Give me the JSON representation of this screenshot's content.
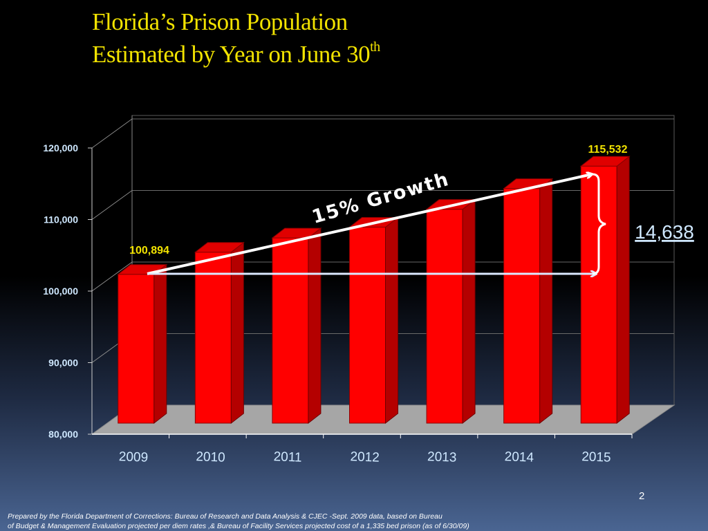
{
  "slide": {
    "title_line1": "Florida’s Prison Population",
    "title_line2": "Estimated by Year on June 30",
    "title_sup": "th",
    "page_number": "2",
    "footer_line1": "Prepared by the Florida Department of Corrections: Bureau of Research and Data Analysis & CJEC -Sept. 2009 data, based on  Bureau",
    "footer_line2": "of Budget & Management Evaluation projected per diem rates ,& Bureau of Facility Services projected cost of a 1,335 bed prison (as of 6/30/09)"
  },
  "chart_data": {
    "type": "bar",
    "categories": [
      "2009",
      "2010",
      "2011",
      "2012",
      "2013",
      "2014",
      "2015"
    ],
    "values": [
      100894,
      103500,
      105500,
      107000,
      109500,
      112400,
      115532
    ],
    "ylim": [
      80000,
      120000
    ],
    "yticks": [
      80000,
      90000,
      100000,
      110000,
      120000
    ],
    "ytick_labels": [
      "80,000",
      "90,000",
      "100,000",
      "110,000",
      "120,000"
    ],
    "data_labels": [
      {
        "index": 0,
        "text": "100,894"
      },
      {
        "index": 6,
        "text": "115,532"
      }
    ],
    "annotations": {
      "growth_label": "15% Growth",
      "difference_label": "14,638"
    },
    "grid": true,
    "bar_color": "#ff0000",
    "label_color": "#f2e300",
    "axis_text_color": "#cfe8ff"
  }
}
